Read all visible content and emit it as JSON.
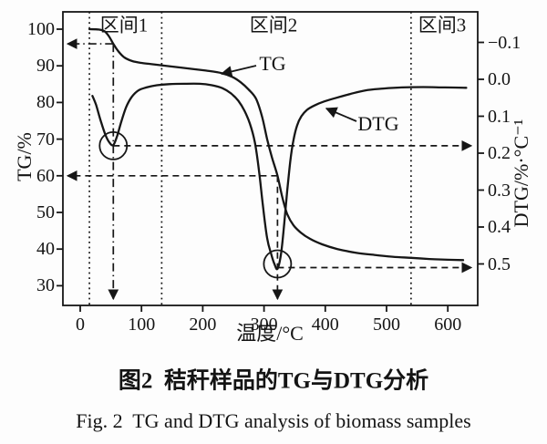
{
  "figure": {
    "caption_cn": "图2  秸秆样品的TG与DTG分析",
    "caption_en": "Fig. 2  TG and DTG analysis of biomass samples"
  },
  "chart_data": {
    "type": "line",
    "title": "",
    "x_axis": {
      "label": "温度/°C",
      "ticks": [
        0,
        100,
        200,
        300,
        400,
        500,
        600
      ],
      "range": [
        -30,
        652
      ]
    },
    "y_left": {
      "label": "TG/%",
      "ticks": [
        100,
        90,
        80,
        70,
        60,
        50,
        40,
        30
      ],
      "range": [
        24.5,
        104.7
      ]
    },
    "y_right": {
      "label": "DTG/%·°C⁻¹",
      "ticks": [
        "−0.1",
        "0.0",
        "0.1",
        "0.2",
        "0.3",
        "0.4",
        "0.5"
      ],
      "range": [
        -0.18,
        0.61
      ],
      "inverted": true
    },
    "grid": false,
    "line_color": "#161616",
    "regions": [
      {
        "label": "区间1",
        "from_T": 15,
        "to_T": 133
      },
      {
        "label": "区间2",
        "from_T": 133,
        "to_T": 540
      },
      {
        "label": "区间3",
        "from_T": 540,
        "to_T": 652
      }
    ],
    "series": [
      {
        "name": "TG",
        "axis": "left",
        "unit": "%",
        "points": [
          [
            15,
            100
          ],
          [
            30,
            99.9
          ],
          [
            40,
            99.4
          ],
          [
            47,
            98
          ],
          [
            54,
            96
          ],
          [
            62,
            94
          ],
          [
            72,
            92.3
          ],
          [
            85,
            91.3
          ],
          [
            100,
            90.8
          ],
          [
            120,
            90.4
          ],
          [
            145,
            89.9
          ],
          [
            175,
            89.3
          ],
          [
            205,
            88.7
          ],
          [
            231,
            88
          ],
          [
            248,
            87
          ],
          [
            262,
            85.5
          ],
          [
            275,
            83.5
          ],
          [
            287,
            81
          ],
          [
            297,
            76
          ],
          [
            305,
            70
          ],
          [
            313,
            65
          ],
          [
            322,
            60
          ],
          [
            330,
            54
          ],
          [
            338,
            49.5
          ],
          [
            348,
            46.5
          ],
          [
            360,
            44.5
          ],
          [
            375,
            42.8
          ],
          [
            395,
            41.3
          ],
          [
            420,
            40
          ],
          [
            450,
            39
          ],
          [
            480,
            38.4
          ],
          [
            510,
            37.9
          ],
          [
            540,
            37.6
          ],
          [
            570,
            37.3
          ],
          [
            600,
            37.1
          ],
          [
            625,
            37
          ]
        ]
      },
      {
        "name": "DTG",
        "axis": "right",
        "unit": "%·°C⁻¹",
        "points": [
          [
            20,
            0.045
          ],
          [
            26,
            0.07
          ],
          [
            33,
            0.11
          ],
          [
            41,
            0.15
          ],
          [
            48,
            0.172
          ],
          [
            54,
            0.178
          ],
          [
            60,
            0.155
          ],
          [
            67,
            0.115
          ],
          [
            75,
            0.075
          ],
          [
            84,
            0.048
          ],
          [
            95,
            0.03
          ],
          [
            108,
            0.022
          ],
          [
            125,
            0.016
          ],
          [
            145,
            0.013
          ],
          [
            170,
            0.012
          ],
          [
            195,
            0.012
          ],
          [
            215,
            0.016
          ],
          [
            232,
            0.024
          ],
          [
            246,
            0.038
          ],
          [
            258,
            0.058
          ],
          [
            268,
            0.085
          ],
          [
            277,
            0.12
          ],
          [
            285,
            0.17
          ],
          [
            292,
            0.25
          ],
          [
            298,
            0.34
          ],
          [
            305,
            0.43
          ],
          [
            312,
            0.475
          ],
          [
            317,
            0.5
          ],
          [
            322,
            0.513
          ],
          [
            328,
            0.47
          ],
          [
            333,
            0.39
          ],
          [
            338,
            0.3
          ],
          [
            343,
            0.22
          ],
          [
            348,
            0.165
          ],
          [
            354,
            0.125
          ],
          [
            361,
            0.1
          ],
          [
            370,
            0.083
          ],
          [
            382,
            0.071
          ],
          [
            398,
            0.06
          ],
          [
            418,
            0.05
          ],
          [
            440,
            0.04
          ],
          [
            465,
            0.03
          ],
          [
            495,
            0.025
          ],
          [
            525,
            0.022
          ],
          [
            560,
            0.021
          ],
          [
            595,
            0.022
          ],
          [
            630,
            0.023
          ]
        ]
      }
    ],
    "annotations": {
      "peak1": {
        "T": 54,
        "DTG": 0.18,
        "TG": 96
      },
      "peak2": {
        "T": 322,
        "DTG": 0.5,
        "TG": 60
      }
    }
  }
}
